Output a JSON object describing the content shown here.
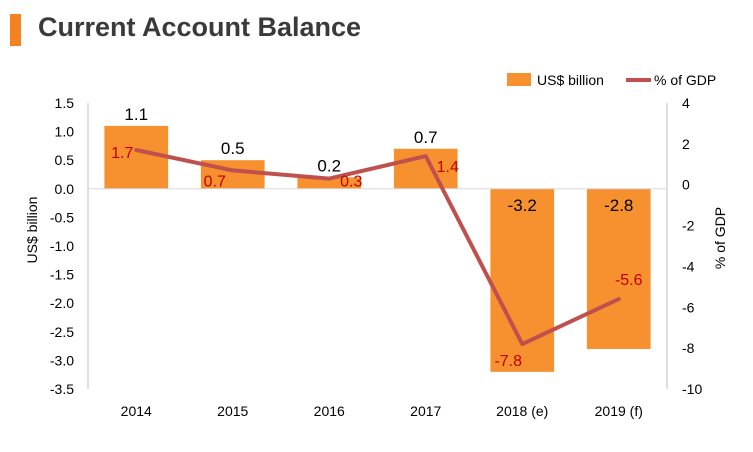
{
  "header": {
    "title": "Current Account Balance"
  },
  "colors": {
    "accent": "#F58220",
    "bar": "#F7902E",
    "line": "#C0504D",
    "line_label": "#C00000"
  },
  "chart_data": {
    "type": "bar",
    "title": "Current Account Balance",
    "categories": [
      "2014",
      "2015",
      "2016",
      "2017",
      "2018 (e)",
      "2019 (f)"
    ],
    "series": [
      {
        "name": "US$ billion",
        "type": "bar",
        "axis": "left",
        "values": [
          1.1,
          0.5,
          0.2,
          0.7,
          -3.2,
          -2.8
        ],
        "labels": [
          "1.1",
          "0.5",
          "0.2",
          "0.7",
          "-3.2",
          "-2.8"
        ]
      },
      {
        "name": "% of GDP",
        "type": "line",
        "axis": "right",
        "values": [
          1.7,
          0.7,
          0.3,
          1.4,
          -7.8,
          -5.6
        ],
        "labels": [
          "1.7",
          "0.7",
          "0.3",
          "1.4",
          "-7.8",
          "-5.6"
        ]
      }
    ],
    "ylabel": "US$ billion",
    "y2label": "% of GDP",
    "ylim": [
      -3.5,
      1.5
    ],
    "y2lim": [
      -10,
      4
    ],
    "yticks": [
      "1.5",
      "1.0",
      "0.5",
      "0.0",
      "-0.5",
      "-1.0",
      "-1.5",
      "-2.0",
      "-2.5",
      "-3.0",
      "-3.5"
    ],
    "y2ticks": [
      "4",
      "2",
      "0",
      "-2",
      "-4",
      "-6",
      "-8",
      "-10"
    ],
    "legend": "top-right",
    "grid": false
  }
}
